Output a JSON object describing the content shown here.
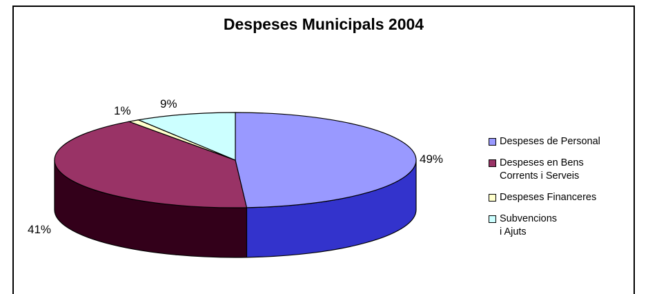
{
  "chart_data": {
    "type": "pie",
    "title": "Despeses Municipals 2004",
    "three_d": true,
    "legend_position": "right",
    "slices": [
      {
        "label": "Despeses de Personal",
        "percent": 49,
        "value_label": "49%",
        "color": "#9999ff",
        "side_color": "#3333cc"
      },
      {
        "label": "Despeses en Bens\nCorrents i Serveis",
        "percent": 41,
        "value_label": "41%",
        "color": "#993366",
        "side_color": "#33001a"
      },
      {
        "label": "Despeses Financeres",
        "percent": 1,
        "value_label": "1%",
        "color": "#ffffcc",
        "side_color": "#999966"
      },
      {
        "label": "Subvencions\ni Ajuts",
        "percent": 9,
        "value_label": "9%",
        "color": "#ccffff",
        "side_color": "#669999"
      }
    ]
  }
}
